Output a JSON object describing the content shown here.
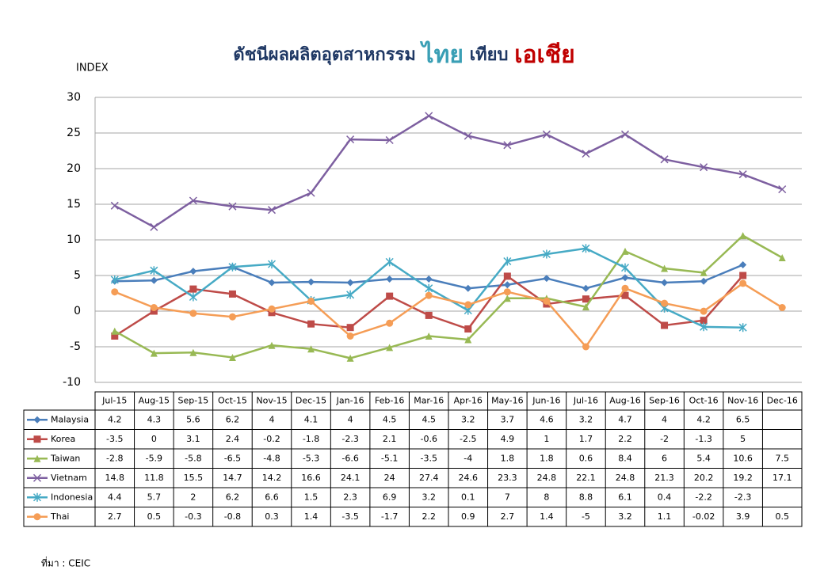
{
  "chart_data": {
    "type": "line",
    "title_prefix": "ดัชนีผลผลิตอุตสาหกรรม",
    "title_thai": "ไทย",
    "title_mid": "เทียบ",
    "title_asia": "เอเชีย",
    "y_label": "INDEX",
    "source": "ที่มา : CEIC",
    "categories": [
      "Jul-15",
      "Aug-15",
      "Sep-15",
      "Oct-15",
      "Nov-15",
      "Dec-15",
      "Jan-16",
      "Feb-16",
      "Mar-16",
      "Apr-16",
      "May-16",
      "Jun-16",
      "Jul-16",
      "Aug-16",
      "Sep-16",
      "Oct-16",
      "Nov-16",
      "Dec-16"
    ],
    "ylim": [
      -10,
      30
    ],
    "yticks": [
      -10,
      -5,
      0,
      5,
      10,
      15,
      20,
      25,
      30
    ],
    "grid": true,
    "series": [
      {
        "name": "Malaysia",
        "color": "#4a7ebb",
        "marker": "diamond",
        "values": [
          4.2,
          4.3,
          5.6,
          6.2,
          4,
          4.1,
          4,
          4.5,
          4.5,
          3.2,
          3.7,
          4.6,
          3.2,
          4.7,
          4,
          4.2,
          6.5,
          null
        ]
      },
      {
        "name": "Korea",
        "color": "#be4b48",
        "marker": "square",
        "values": [
          -3.5,
          0,
          3.1,
          2.4,
          -0.2,
          -1.8,
          -2.3,
          2.1,
          -0.6,
          -2.5,
          4.9,
          1,
          1.7,
          2.2,
          -2,
          -1.3,
          5,
          null
        ]
      },
      {
        "name": "Taiwan",
        "color": "#98b954",
        "marker": "triangle",
        "values": [
          -2.8,
          -5.9,
          -5.8,
          -6.5,
          -4.8,
          -5.3,
          -6.6,
          -5.1,
          -3.5,
          -4,
          1.8,
          1.8,
          0.6,
          8.4,
          6,
          5.4,
          10.6,
          7.5
        ]
      },
      {
        "name": "Vietnam",
        "color": "#7d5fa0",
        "marker": "x",
        "values": [
          14.8,
          11.8,
          15.5,
          14.7,
          14.2,
          16.6,
          24.1,
          24,
          27.4,
          24.6,
          23.3,
          24.8,
          22.1,
          24.8,
          21.3,
          20.2,
          19.2,
          17.1
        ]
      },
      {
        "name": "Indonesia",
        "color": "#46aac5",
        "marker": "star",
        "values": [
          4.4,
          5.7,
          2,
          6.2,
          6.6,
          1.5,
          2.3,
          6.9,
          3.2,
          0.1,
          7,
          8,
          8.8,
          6.1,
          0.4,
          -2.2,
          -2.3,
          null
        ]
      },
      {
        "name": "Thai",
        "color": "#f59d56",
        "marker": "circle",
        "values": [
          2.7,
          0.5,
          -0.3,
          -0.8,
          0.3,
          1.4,
          -3.5,
          -1.7,
          2.2,
          0.9,
          2.7,
          1.4,
          -5,
          3.2,
          1.1,
          -0.02,
          3.9,
          0.5
        ]
      }
    ]
  }
}
